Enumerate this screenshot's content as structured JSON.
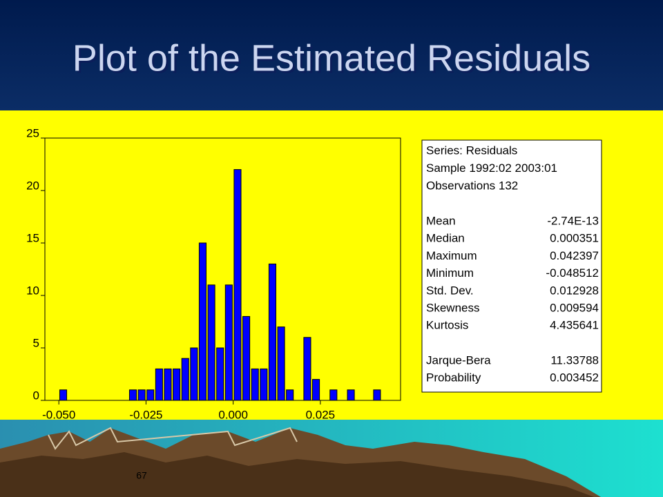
{
  "slide": {
    "title": "Plot of the Estimated Residuals",
    "page_number": "67"
  },
  "chart_data": {
    "type": "histogram",
    "bins": [
      -0.05,
      -0.0475,
      -0.045,
      -0.0425,
      -0.04,
      -0.0375,
      -0.035,
      -0.0325,
      -0.03,
      -0.0275,
      -0.025,
      -0.0225,
      -0.02,
      -0.0175,
      -0.015,
      -0.0125,
      -0.01,
      -0.0075,
      -0.005,
      -0.0025,
      0,
      0.0025,
      0.005,
      0.0075,
      0.01,
      0.0125,
      0.015,
      0.0175,
      0.02,
      0.0225,
      0.025,
      0.0275,
      0.03,
      0.0325,
      0.035,
      0.0375,
      0.04,
      0.0425
    ],
    "values": [
      1,
      0,
      0,
      0,
      0,
      0,
      0,
      0,
      1,
      1,
      1,
      3,
      3,
      3,
      4,
      5,
      15,
      11,
      5,
      11,
      22,
      8,
      3,
      3,
      13,
      7,
      1,
      0,
      6,
      2,
      0,
      1,
      0,
      1,
      0,
      0,
      1
    ],
    "color": "#0000ff",
    "xlim": [
      -0.054,
      0.048
    ],
    "xticks": [
      {
        "value": -0.05,
        "label": "-0.050"
      },
      {
        "value": -0.025,
        "label": "-0.025"
      },
      {
        "value": 0,
        "label": "0.000"
      },
      {
        "value": 0.025,
        "label": "0.025"
      }
    ],
    "ylim": [
      0,
      25
    ],
    "yticks": [
      0,
      5,
      10,
      15,
      20,
      25
    ],
    "grid": false,
    "stats_header": [
      "Series: Residuals",
      "Sample 1992:02 2003:01",
      "Observations 132"
    ],
    "stats": [
      [
        {
          "label": "Mean",
          "value": "-2.74E-13"
        },
        {
          "label": "Median",
          "value": "0.000351"
        },
        {
          "label": "Maximum",
          "value": "0.042397"
        },
        {
          "label": "Minimum",
          "value": "-0.048512"
        },
        {
          "label": "Std. Dev.",
          "value": "0.012928"
        },
        {
          "label": "Skewness",
          "value": "0.009594"
        },
        {
          "label": "Kurtosis",
          "value": "4.435641"
        }
      ],
      [
        {
          "label": "Jarque-Bera",
          "value": "11.33788"
        },
        {
          "label": "Probability",
          "value": "0.003452"
        }
      ]
    ]
  }
}
